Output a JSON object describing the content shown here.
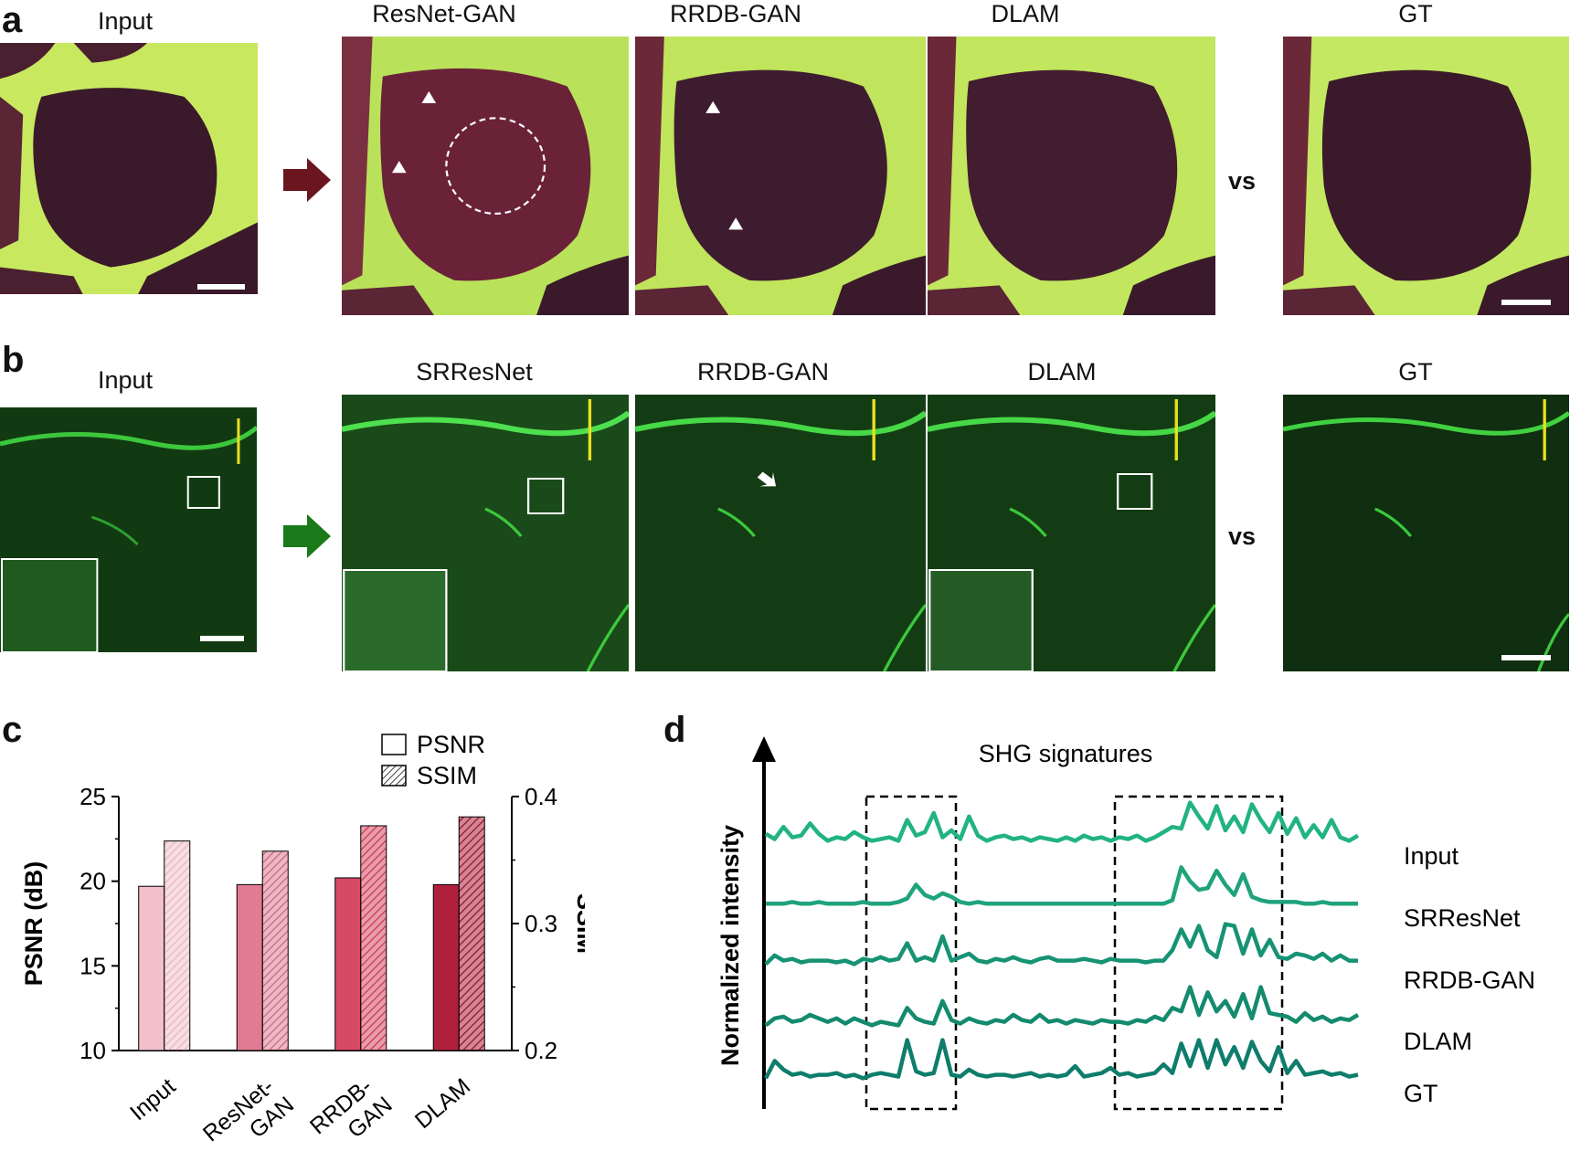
{
  "panel_a": {
    "letter": "a",
    "titles": [
      "Input",
      "ResNet-GAN",
      "RRDB-GAN",
      "DLAM",
      "GT"
    ],
    "vs": "vs"
  },
  "panel_b": {
    "letter": "b",
    "titles": [
      "Input",
      "SRResNet",
      "RRDB-GAN",
      "DLAM",
      "GT"
    ],
    "vs": "vs"
  },
  "colors": {
    "arrow_a": "#6b1520",
    "arrow_b": "#1a7a1a",
    "tissue_bg": "#3a1a2a",
    "collagen": "#c8e860",
    "green_bg": "#123a12",
    "green_fiber": "#4ee04e"
  },
  "chart_data": [
    {
      "panel": "c",
      "type": "bar",
      "categories": [
        "Input",
        "ResNet-GAN",
        "RRDB-GAN",
        "DLAM"
      ],
      "category_labels": [
        [
          "Input"
        ],
        [
          "ResNet-",
          "GAN"
        ],
        [
          "RRDB-",
          "GAN"
        ],
        [
          "DLAM"
        ]
      ],
      "series": [
        {
          "name": "PSNR",
          "axis": "left",
          "values": [
            19.7,
            19.8,
            20.2,
            19.8
          ],
          "pattern": "solid"
        },
        {
          "name": "SSIM",
          "axis": "right",
          "values": [
            0.365,
            0.357,
            0.377,
            0.384
          ],
          "pattern": "hatched"
        }
      ],
      "colors": [
        "#f1c0cb",
        "#e07b92",
        "#d64a66",
        "#b0203c"
      ],
      "hatch_colors": [
        "#eab4c1",
        "#c46a80",
        "#c8384f",
        "#8c1429"
      ],
      "ylabel": "PSNR (dB)",
      "ylim": [
        10,
        25
      ],
      "yticks": [
        10,
        15,
        20,
        25
      ],
      "y2label": "SSIM",
      "y2lim": [
        0.2,
        0.4
      ],
      "y2ticks": [
        "0.2",
        "0.3",
        "0.4"
      ],
      "legend": [
        "PSNR",
        "SSIM"
      ],
      "legend_position": "top-right"
    },
    {
      "panel": "d",
      "type": "line",
      "title": "SHG signatures",
      "ylabel": "Normalized intensity",
      "series": [
        {
          "name": "Input",
          "color": "#22b383",
          "values": [
            0.4,
            0.25,
            0.6,
            0.3,
            0.35,
            0.7,
            0.4,
            0.2,
            0.3,
            0.25,
            0.45,
            0.3,
            0.2,
            0.25,
            0.3,
            0.2,
            0.8,
            0.35,
            0.45,
            1.0,
            0.3,
            0.5,
            0.25,
            0.9,
            0.35,
            0.2,
            0.3,
            0.35,
            0.25,
            0.3,
            0.2,
            0.3,
            0.25,
            0.2,
            0.3,
            0.2,
            0.35,
            0.25,
            0.3,
            0.2,
            0.3,
            0.25,
            0.35,
            0.2,
            0.3,
            0.45,
            0.6,
            0.55,
            1.3,
            0.9,
            0.55,
            1.2,
            0.5,
            0.9,
            0.45,
            1.25,
            0.8,
            0.45,
            1.0,
            0.4,
            0.85,
            0.3,
            0.65,
            0.3,
            0.8,
            0.3,
            0.2,
            0.35
          ]
        },
        {
          "name": "SRResNet",
          "color": "#1fa37c",
          "values": [
            0.15,
            0.15,
            0.15,
            0.2,
            0.15,
            0.15,
            0.2,
            0.15,
            0.15,
            0.15,
            0.15,
            0.2,
            0.15,
            0.15,
            0.15,
            0.2,
            0.3,
            0.7,
            0.4,
            0.3,
            0.45,
            0.35,
            0.2,
            0.15,
            0.2,
            0.15,
            0.15,
            0.15,
            0.15,
            0.15,
            0.15,
            0.15,
            0.15,
            0.15,
            0.15,
            0.15,
            0.15,
            0.15,
            0.15,
            0.15,
            0.15,
            0.15,
            0.15,
            0.15,
            0.15,
            0.15,
            0.25,
            1.2,
            0.8,
            0.55,
            0.6,
            1.1,
            0.7,
            0.4,
            1.0,
            0.35,
            0.25,
            0.2,
            0.2,
            0.2,
            0.2,
            0.15,
            0.15,
            0.2,
            0.15,
            0.15,
            0.15,
            0.15
          ]
        },
        {
          "name": "RRDB-GAN",
          "color": "#169374",
          "values": [
            0.2,
            0.45,
            0.3,
            0.35,
            0.25,
            0.3,
            0.3,
            0.3,
            0.25,
            0.3,
            0.2,
            0.35,
            0.3,
            0.4,
            0.3,
            0.35,
            0.8,
            0.3,
            0.4,
            0.3,
            1.0,
            0.3,
            0.4,
            0.5,
            0.3,
            0.25,
            0.35,
            0.3,
            0.4,
            0.3,
            0.25,
            0.35,
            0.4,
            0.3,
            0.3,
            0.3,
            0.35,
            0.3,
            0.25,
            0.35,
            0.3,
            0.3,
            0.3,
            0.25,
            0.3,
            0.3,
            0.6,
            1.2,
            0.7,
            1.3,
            0.6,
            0.4,
            1.35,
            1.3,
            0.5,
            1.2,
            0.45,
            0.9,
            0.4,
            0.35,
            0.5,
            0.45,
            0.35,
            0.5,
            0.3,
            0.45,
            0.3,
            0.3
          ]
        },
        {
          "name": "DLAM",
          "color": "#148a6e",
          "values": [
            0.2,
            0.4,
            0.45,
            0.3,
            0.35,
            0.5,
            0.4,
            0.3,
            0.4,
            0.25,
            0.4,
            0.3,
            0.2,
            0.3,
            0.25,
            0.2,
            0.7,
            0.4,
            0.3,
            0.25,
            0.9,
            0.35,
            0.25,
            0.4,
            0.3,
            0.25,
            0.35,
            0.3,
            0.5,
            0.35,
            0.3,
            0.5,
            0.3,
            0.35,
            0.25,
            0.35,
            0.3,
            0.25,
            0.35,
            0.3,
            0.3,
            0.25,
            0.35,
            0.3,
            0.45,
            0.35,
            0.7,
            0.6,
            1.3,
            0.5,
            1.15,
            0.6,
            0.9,
            0.45,
            1.1,
            0.4,
            1.3,
            0.55,
            0.5,
            0.45,
            0.3,
            0.55,
            0.35,
            0.45,
            0.3,
            0.4,
            0.35,
            0.5
          ]
        },
        {
          "name": "GT",
          "color": "#0f7d6b",
          "values": [
            0.2,
            0.7,
            0.45,
            0.3,
            0.35,
            0.25,
            0.3,
            0.3,
            0.35,
            0.25,
            0.3,
            0.2,
            0.3,
            0.35,
            0.3,
            0.25,
            1.3,
            0.4,
            0.3,
            0.35,
            1.3,
            0.3,
            0.25,
            0.45,
            0.3,
            0.25,
            0.3,
            0.3,
            0.25,
            0.3,
            0.35,
            0.25,
            0.3,
            0.25,
            0.3,
            0.55,
            0.25,
            0.3,
            0.35,
            0.5,
            0.3,
            0.35,
            0.25,
            0.3,
            0.35,
            0.6,
            0.35,
            1.2,
            0.55,
            1.3,
            0.5,
            1.3,
            0.6,
            1.1,
            0.5,
            1.25,
            0.7,
            0.4,
            1.1,
            0.35,
            0.7,
            0.3,
            0.35,
            0.4,
            0.3,
            0.35,
            0.25,
            0.3
          ]
        }
      ]
    }
  ]
}
